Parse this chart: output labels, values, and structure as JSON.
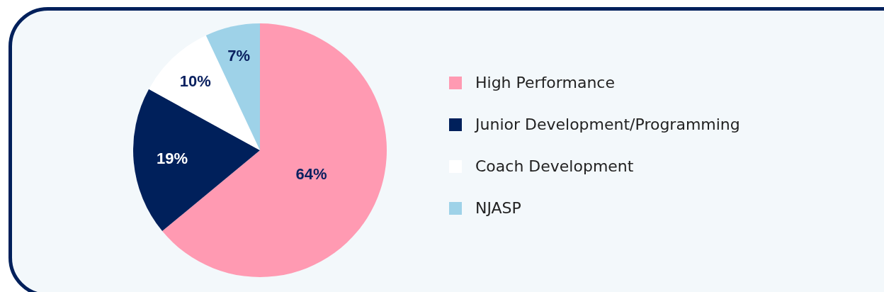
{
  "chart_data": {
    "type": "pie",
    "categories": [
      "High Performance",
      "Junior Development/Programming",
      "Coach Development",
      "NJASP"
    ],
    "values": [
      64,
      19,
      10,
      7
    ],
    "colors": [
      "#ff9ab2",
      "#00205b",
      "#ffffff",
      "#9ed2e8"
    ],
    "value_labels": [
      "64%",
      "19%",
      "10%",
      "7%"
    ],
    "legend": "right"
  }
}
